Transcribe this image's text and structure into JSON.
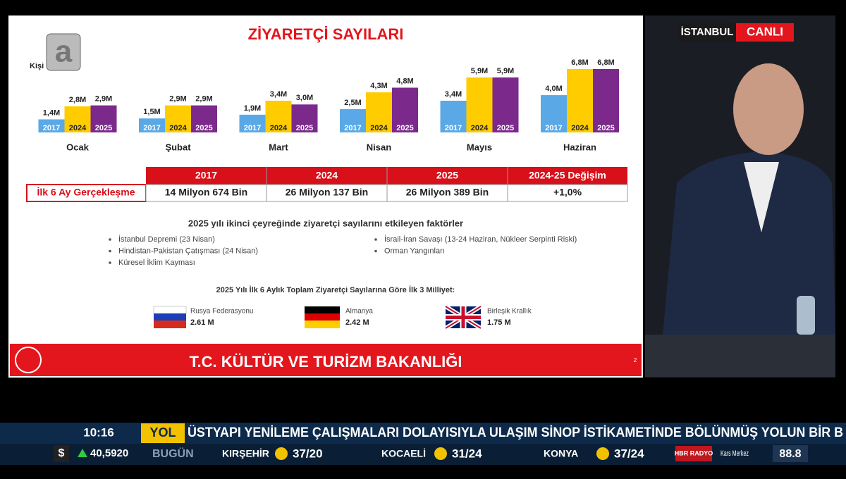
{
  "broadcast": {
    "logo_caption": "Kişi",
    "location": "İSTANBUL",
    "live": "CANLI"
  },
  "slide": {
    "title": "ZİYARETÇİ SAYILARI",
    "chart_data": {
      "type": "bar",
      "categories": [
        "Ocak",
        "Şubat",
        "Mart",
        "Nisan",
        "Mayıs",
        "Haziran"
      ],
      "series": [
        {
          "name": "2017",
          "color": "#5aa9e6",
          "values": [
            1.4,
            1.5,
            1.9,
            2.5,
            3.4,
            4.0
          ],
          "value_labels": [
            "1,4M",
            "1,5M",
            "1,9M",
            "2,5M",
            "3,4M",
            "4,0M"
          ]
        },
        {
          "name": "2024",
          "color": "#ffcc00",
          "values": [
            2.8,
            2.9,
            3.4,
            4.3,
            5.9,
            6.8
          ],
          "value_labels": [
            "2,8M",
            "2,9M",
            "3,4M",
            "4,3M",
            "5,9M",
            "6,8M"
          ]
        },
        {
          "name": "2025",
          "color": "#7b2a8c",
          "values": [
            2.9,
            2.9,
            3.0,
            4.8,
            5.9,
            6.8
          ],
          "value_labels": [
            "2,9M",
            "2,9M",
            "3,0M",
            "4,8M",
            "5,9M",
            "6,8M"
          ]
        }
      ]
    },
    "table": {
      "header": [
        "2017",
        "2024",
        "2025",
        "2024-25 Değişim"
      ],
      "row_label": "İlk 6 Ay Gerçekleşme",
      "row": [
        "14 Milyon 674 Bin",
        "26 Milyon 137 Bin",
        "26 Milyon 389 Bin",
        "+1,0%"
      ]
    },
    "factors": {
      "title": "2025 yılı ikinci çeyreğinde ziyaretçi sayılarını etkileyen faktörler",
      "left": [
        "İstanbul Depremi (23 Nisan)",
        "Hindistan-Pakistan Çatışması (24 Nisan)",
        "Küresel İklim Kayması"
      ],
      "right": [
        "İsrail-İran Savaşı (13-24 Haziran, Nükleer Serpinti Riski)",
        "Orman Yangınları"
      ]
    },
    "top3": {
      "title": "2025 Yılı İlk 6 Aylık Toplam Ziyaretçi Sayılarına Göre İlk 3 Milliyet:",
      "items": [
        {
          "name": "Rusya Federasyonu",
          "value": "2.61 M"
        },
        {
          "name": "Almanya",
          "value": "2.42 M"
        },
        {
          "name": "Birleşik Krallık",
          "value": "1.75 M"
        }
      ]
    },
    "footer": "T.C. KÜLTÜR VE TURİZM BAKANLIĞI",
    "page": "2"
  },
  "ticker": {
    "time": "10:16",
    "tag": "YOL",
    "headline": "ÜSTYAPI YENİLEME ÇALIŞMALARI DOLAYISIYLA ULAŞIM SİNOP İSTİKAMETİNDE BÖLÜNMÜŞ YOLUN BİR B",
    "currency": "$",
    "rate": "40,5920",
    "day": "BUGÜN",
    "weather": [
      {
        "city": "KIRŞEHİR",
        "temp": "37/20"
      },
      {
        "city": "KOCAELİ",
        "temp": "31/24"
      },
      {
        "city": "KONYA",
        "temp": "37/24"
      }
    ],
    "radio": "HBR RADYO",
    "station": "Kars Merkez",
    "frequency": "88.8"
  }
}
